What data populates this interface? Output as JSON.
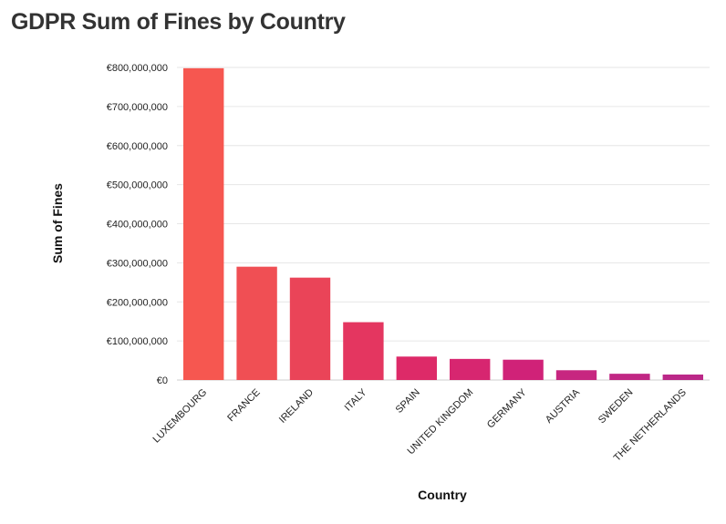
{
  "title": "GDPR Sum of Fines by Country",
  "chart_data": {
    "type": "bar",
    "xlabel": "Country",
    "ylabel": "Sum of Fines",
    "ylim": [
      0,
      800000000
    ],
    "yticks": [
      "€0",
      "€100,000,000",
      "€200,000,000",
      "€300,000,000",
      "€400,000,000",
      "€500,000,000",
      "€600,000,000",
      "€700,000,000",
      "€800,000,000"
    ],
    "grid": true,
    "categories": [
      "LUXEMBOURG",
      "FRANCE",
      "IRELAND",
      "ITALY",
      "SPAIN",
      "UNITED KINGDOM",
      "GERMANY",
      "AUSTRIA",
      "SWEDEN",
      "THE NETHERLANDS"
    ],
    "values": [
      798000000,
      290000000,
      262000000,
      148000000,
      60000000,
      54000000,
      52000000,
      25000000,
      16000000,
      14000000
    ],
    "colors": [
      "#f65750",
      "#f04f54",
      "#ea4458",
      "#e43660",
      "#dd2a68",
      "#d72670",
      "#d02278",
      "#c72680",
      "#c12784",
      "#bb2888"
    ]
  }
}
